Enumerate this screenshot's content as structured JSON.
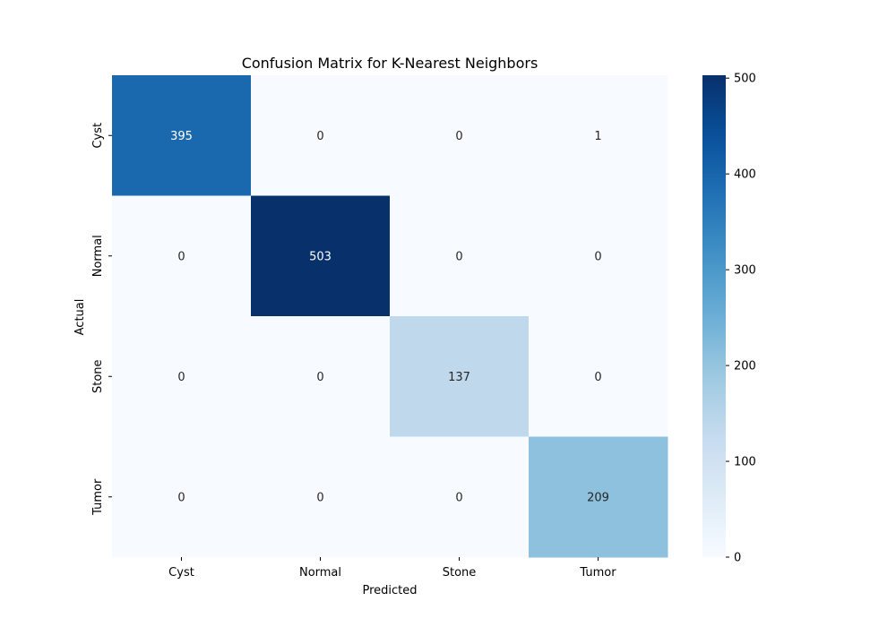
{
  "chart_data": {
    "type": "heatmap",
    "title": "Confusion Matrix for K-Nearest Neighbors",
    "xlabel": "Predicted",
    "ylabel": "Actual",
    "x_categories": [
      "Cyst",
      "Normal",
      "Stone",
      "Tumor"
    ],
    "y_categories": [
      "Cyst",
      "Normal",
      "Stone",
      "Tumor"
    ],
    "values": [
      [
        395,
        0,
        0,
        1
      ],
      [
        0,
        503,
        0,
        0
      ],
      [
        0,
        0,
        137,
        0
      ],
      [
        0,
        0,
        0,
        209
      ]
    ],
    "colormap": "Blues",
    "colorbar": {
      "range": [
        0,
        503
      ],
      "ticks": [
        0,
        100,
        200,
        300,
        400,
        500
      ]
    }
  }
}
